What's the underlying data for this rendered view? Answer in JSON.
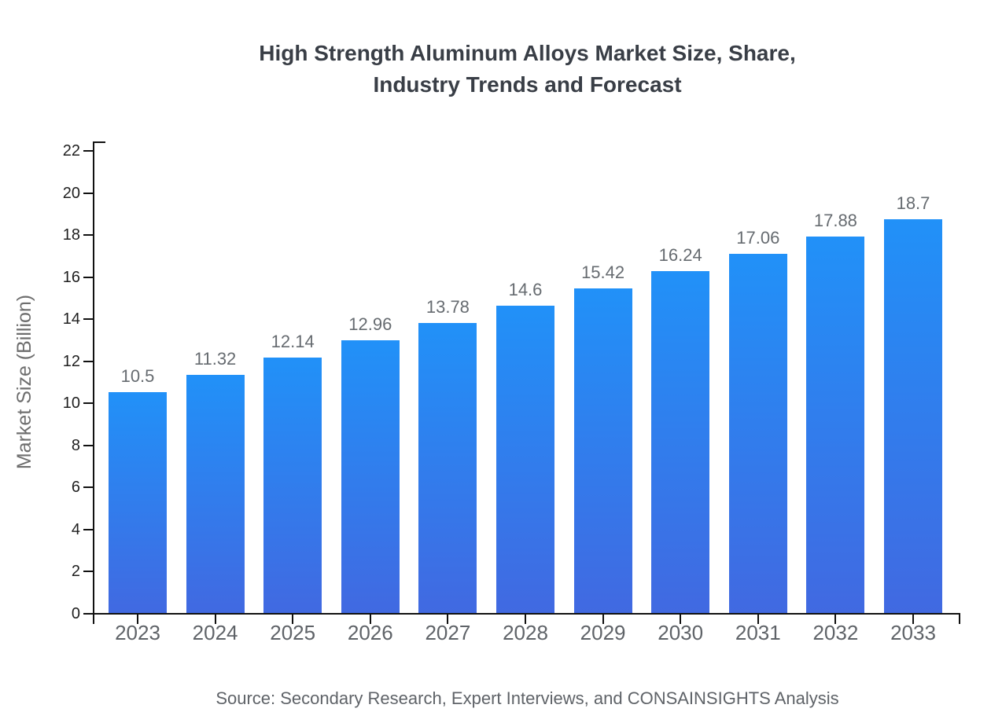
{
  "figure": {
    "title_lines": [
      "High Strength Aluminum Alloys Market Size, Share,",
      "Industry Trends and Forecast"
    ],
    "source_note": "Source: Secondary Research, Expert Interviews, and CONSAINSIGHTS Analysis"
  },
  "chart_data": {
    "type": "bar",
    "title": "High Strength Aluminum Alloys Market Size, Share, Industry Trends and Forecast",
    "categories": [
      "2023",
      "2024",
      "2025",
      "2026",
      "2027",
      "2028",
      "2029",
      "2030",
      "2031",
      "2032",
      "2033"
    ],
    "values": [
      10.5,
      11.32,
      12.14,
      12.96,
      13.78,
      14.6,
      15.42,
      16.24,
      17.06,
      17.88,
      18.7
    ],
    "xlabel": "",
    "ylabel": "Market Size (Billion)",
    "ylim": [
      0,
      22
    ],
    "yticks": [
      0,
      2,
      4,
      6,
      8,
      10,
      12,
      14,
      16,
      18,
      20,
      22
    ],
    "grid": false,
    "value_labels_shown": true,
    "source": "Source: Secondary Research, Expert Interviews, and CONSAINSIGHTS Analysis",
    "colors": {
      "bar_gradient_top": "#2191f8",
      "bar_gradient_bottom": "#4169e1",
      "axis": "#111111",
      "title_text": "#393e46",
      "ytick_text": "#1f1f1f",
      "xtick_text": "#5f6368",
      "value_label_text": "#666b70",
      "ylabel_text": "#6e6e6e",
      "source_text": "#5f6368"
    }
  }
}
